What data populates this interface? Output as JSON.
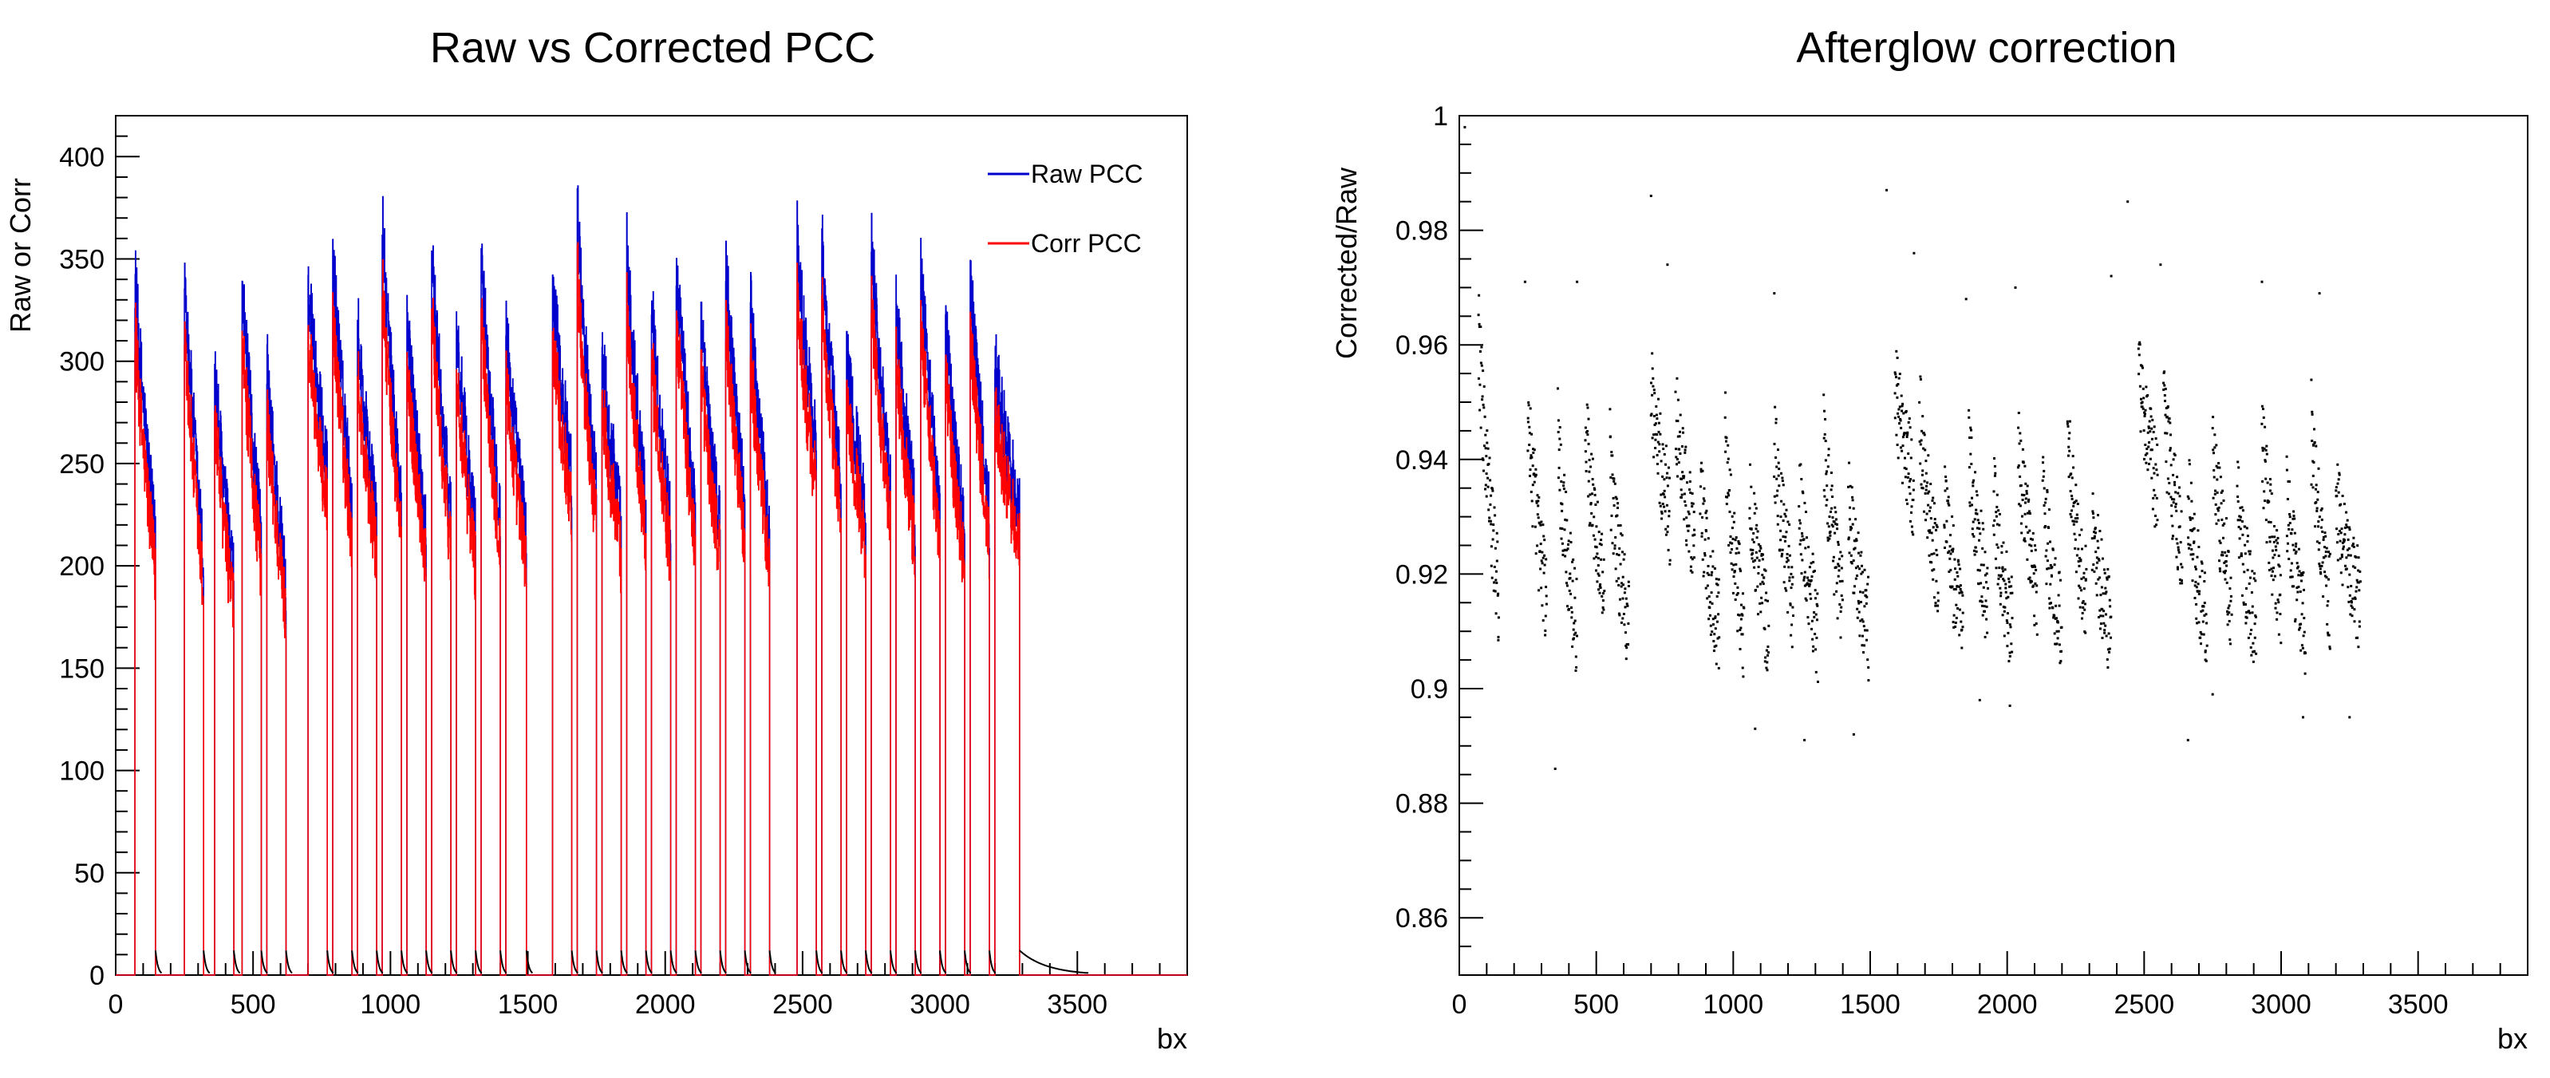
{
  "chart_data": [
    {
      "type": "line",
      "title": "Raw vs Corrected PCC",
      "xlabel": "bx",
      "ylabel": "Raw or Corr",
      "xlim": [
        0,
        3900
      ],
      "ylim": [
        0,
        420
      ],
      "x_ticks": [
        0,
        500,
        1000,
        1500,
        2000,
        2500,
        3000,
        3500
      ],
      "y_ticks": [
        0,
        50,
        100,
        150,
        200,
        250,
        300,
        350,
        400
      ],
      "x_minor_step": 100,
      "y_minor_step": 10,
      "grid": false,
      "legend_position": "top-right",
      "series": [
        {
          "name": "Raw PCC",
          "color": "#0000cc",
          "trains": [
            {
              "start": 70,
              "length": 75,
              "first": 345,
              "last": 210,
              "end_tail": 12
            },
            {
              "start": 250,
              "length": 70,
              "first": 350,
              "last": 200,
              "end_tail": 12
            },
            {
              "start": 360,
              "length": 70,
              "first": 300,
              "last": 190,
              "end_tail": 12
            },
            {
              "start": 460,
              "length": 70,
              "first": 340,
              "last": 215,
              "end_tail": 12
            },
            {
              "start": 550,
              "length": 70,
              "first": 300,
              "last": 190,
              "end_tail": 12
            },
            {
              "start": 700,
              "length": 70,
              "first": 345,
              "last": 245,
              "end_tail": 12
            },
            {
              "start": 790,
              "length": 70,
              "first": 355,
              "last": 230,
              "end_tail": 12
            },
            {
              "start": 880,
              "length": 70,
              "first": 320,
              "last": 220,
              "end_tail": 12
            },
            {
              "start": 970,
              "length": 70,
              "first": 370,
              "last": 230,
              "end_tail": 12
            },
            {
              "start": 1060,
              "length": 70,
              "first": 320,
              "last": 220,
              "end_tail": 12
            },
            {
              "start": 1150,
              "length": 70,
              "first": 355,
              "last": 225,
              "end_tail": 12
            },
            {
              "start": 1240,
              "length": 70,
              "first": 320,
              "last": 215,
              "end_tail": 12
            },
            {
              "start": 1330,
              "length": 70,
              "first": 355,
              "last": 225,
              "end_tail": 12
            },
            {
              "start": 1420,
              "length": 75,
              "first": 320,
              "last": 215,
              "end_tail": 12
            },
            {
              "start": 1590,
              "length": 70,
              "first": 340,
              "last": 245,
              "end_tail": 12
            },
            {
              "start": 1680,
              "length": 70,
              "first": 375,
              "last": 235,
              "end_tail": 12
            },
            {
              "start": 1770,
              "length": 70,
              "first": 310,
              "last": 220,
              "end_tail": 12
            },
            {
              "start": 1860,
              "length": 70,
              "first": 355,
              "last": 230,
              "end_tail": 12
            },
            {
              "start": 1950,
              "length": 70,
              "first": 330,
              "last": 220,
              "end_tail": 12
            },
            {
              "start": 2040,
              "length": 70,
              "first": 355,
              "last": 225,
              "end_tail": 12
            },
            {
              "start": 2130,
              "length": 70,
              "first": 320,
              "last": 220,
              "end_tail": 12
            },
            {
              "start": 2220,
              "length": 70,
              "first": 350,
              "last": 230,
              "end_tail": 12
            },
            {
              "start": 2310,
              "length": 70,
              "first": 330,
              "last": 215,
              "end_tail": 12
            },
            {
              "start": 2480,
              "length": 70,
              "first": 360,
              "last": 255,
              "end_tail": 12
            },
            {
              "start": 2570,
              "length": 70,
              "first": 360,
              "last": 240,
              "end_tail": 12
            },
            {
              "start": 2660,
              "length": 70,
              "first": 310,
              "last": 225,
              "end_tail": 12
            },
            {
              "start": 2750,
              "length": 70,
              "first": 365,
              "last": 235,
              "end_tail": 12
            },
            {
              "start": 2840,
              "length": 70,
              "first": 330,
              "last": 225,
              "end_tail": 12
            },
            {
              "start": 2930,
              "length": 70,
              "first": 350,
              "last": 230,
              "end_tail": 12
            },
            {
              "start": 3020,
              "length": 70,
              "first": 320,
              "last": 215,
              "end_tail": 12
            },
            {
              "start": 3110,
              "length": 70,
              "first": 345,
              "last": 225,
              "end_tail": 12
            },
            {
              "start": 3200,
              "length": 90,
              "first": 300,
              "last": 225,
              "end_tail": 12
            }
          ]
        },
        {
          "name": "Corr PCC",
          "color": "#ff0000",
          "correction_ratio": 0.93
        }
      ]
    },
    {
      "type": "scatter",
      "title": "Afterglow correction",
      "xlabel": "bx",
      "ylabel": "Corrected/Raw",
      "xlim": [
        0,
        3900
      ],
      "ylim": [
        0.85,
        1.0
      ],
      "x_ticks": [
        0,
        500,
        1000,
        1500,
        2000,
        2500,
        3000,
        3500
      ],
      "y_ticks": [
        0.86,
        0.88,
        0.9,
        0.92,
        0.94,
        0.96,
        0.98,
        1
      ],
      "y_tick_labels": [
        "0.86",
        "0.88",
        "0.9",
        "0.92",
        "0.94",
        "0.96",
        "0.98",
        "1"
      ],
      "x_minor_step": 100,
      "y_minor_step": 0.005,
      "grid": false,
      "point_color": "#000000",
      "trains": [
        {
          "start": 70,
          "length": 75,
          "ratio_first": 0.965,
          "ratio_last": 0.915
        },
        {
          "start": 250,
          "length": 70,
          "ratio_first": 0.95,
          "ratio_last": 0.915
        },
        {
          "start": 360,
          "length": 70,
          "ratio_first": 0.945,
          "ratio_last": 0.91
        },
        {
          "start": 460,
          "length": 70,
          "ratio_first": 0.95,
          "ratio_last": 0.915
        },
        {
          "start": 550,
          "length": 70,
          "ratio_first": 0.94,
          "ratio_last": 0.91
        },
        {
          "start": 700,
          "length": 70,
          "ratio_first": 0.955,
          "ratio_last": 0.93
        },
        {
          "start": 790,
          "length": 70,
          "ratio_first": 0.95,
          "ratio_last": 0.925
        },
        {
          "start": 880,
          "length": 70,
          "ratio_first": 0.935,
          "ratio_last": 0.91
        },
        {
          "start": 970,
          "length": 70,
          "ratio_first": 0.945,
          "ratio_last": 0.91
        },
        {
          "start": 1060,
          "length": 70,
          "ratio_first": 0.935,
          "ratio_last": 0.91
        },
        {
          "start": 1150,
          "length": 70,
          "ratio_first": 0.945,
          "ratio_last": 0.915
        },
        {
          "start": 1240,
          "length": 70,
          "ratio_first": 0.935,
          "ratio_last": 0.91
        },
        {
          "start": 1330,
          "length": 70,
          "ratio_first": 0.945,
          "ratio_last": 0.915
        },
        {
          "start": 1420,
          "length": 75,
          "ratio_first": 0.935,
          "ratio_last": 0.91
        },
        {
          "start": 1590,
          "length": 70,
          "ratio_first": 0.955,
          "ratio_last": 0.935
        },
        {
          "start": 1680,
          "length": 70,
          "ratio_first": 0.95,
          "ratio_last": 0.92
        },
        {
          "start": 1770,
          "length": 70,
          "ratio_first": 0.935,
          "ratio_last": 0.91
        },
        {
          "start": 1860,
          "length": 70,
          "ratio_first": 0.945,
          "ratio_last": 0.915
        },
        {
          "start": 1950,
          "length": 70,
          "ratio_first": 0.935,
          "ratio_last": 0.91
        },
        {
          "start": 2040,
          "length": 70,
          "ratio_first": 0.945,
          "ratio_last": 0.915
        },
        {
          "start": 2130,
          "length": 70,
          "ratio_first": 0.935,
          "ratio_last": 0.91
        },
        {
          "start": 2220,
          "length": 70,
          "ratio_first": 0.945,
          "ratio_last": 0.915
        },
        {
          "start": 2310,
          "length": 70,
          "ratio_first": 0.93,
          "ratio_last": 0.91
        },
        {
          "start": 2480,
          "length": 70,
          "ratio_first": 0.955,
          "ratio_last": 0.935
        },
        {
          "start": 2570,
          "length": 70,
          "ratio_first": 0.95,
          "ratio_last": 0.925
        },
        {
          "start": 2660,
          "length": 70,
          "ratio_first": 0.935,
          "ratio_last": 0.91
        },
        {
          "start": 2750,
          "length": 70,
          "ratio_first": 0.945,
          "ratio_last": 0.915
        },
        {
          "start": 2840,
          "length": 70,
          "ratio_first": 0.935,
          "ratio_last": 0.91
        },
        {
          "start": 2930,
          "length": 70,
          "ratio_first": 0.945,
          "ratio_last": 0.915
        },
        {
          "start": 3020,
          "length": 70,
          "ratio_first": 0.935,
          "ratio_last": 0.91
        },
        {
          "start": 3110,
          "length": 70,
          "ratio_first": 0.945,
          "ratio_last": 0.915
        },
        {
          "start": 3200,
          "length": 90,
          "ratio_first": 0.935,
          "ratio_last": 0.915
        }
      ],
      "outliers": [
        {
          "x": 20,
          "y": 0.998
        },
        {
          "x": 700,
          "y": 0.986
        },
        {
          "x": 1560,
          "y": 0.987
        },
        {
          "x": 2440,
          "y": 0.985
        },
        {
          "x": 1660,
          "y": 0.976
        },
        {
          "x": 760,
          "y": 0.974
        },
        {
          "x": 2560,
          "y": 0.974
        },
        {
          "x": 430,
          "y": 0.971
        },
        {
          "x": 240,
          "y": 0.971
        },
        {
          "x": 1150,
          "y": 0.969
        },
        {
          "x": 1850,
          "y": 0.968
        },
        {
          "x": 2030,
          "y": 0.97
        },
        {
          "x": 2930,
          "y": 0.971
        },
        {
          "x": 3140,
          "y": 0.969
        },
        {
          "x": 2380,
          "y": 0.972
        },
        {
          "x": 350,
          "y": 0.886
        },
        {
          "x": 1260,
          "y": 0.891
        },
        {
          "x": 1080,
          "y": 0.893
        },
        {
          "x": 1900,
          "y": 0.898
        },
        {
          "x": 2660,
          "y": 0.891
        },
        {
          "x": 3080,
          "y": 0.895
        },
        {
          "x": 3250,
          "y": 0.895
        },
        {
          "x": 1440,
          "y": 0.892
        },
        {
          "x": 2010,
          "y": 0.897
        },
        {
          "x": 2750,
          "y": 0.899
        }
      ]
    }
  ]
}
